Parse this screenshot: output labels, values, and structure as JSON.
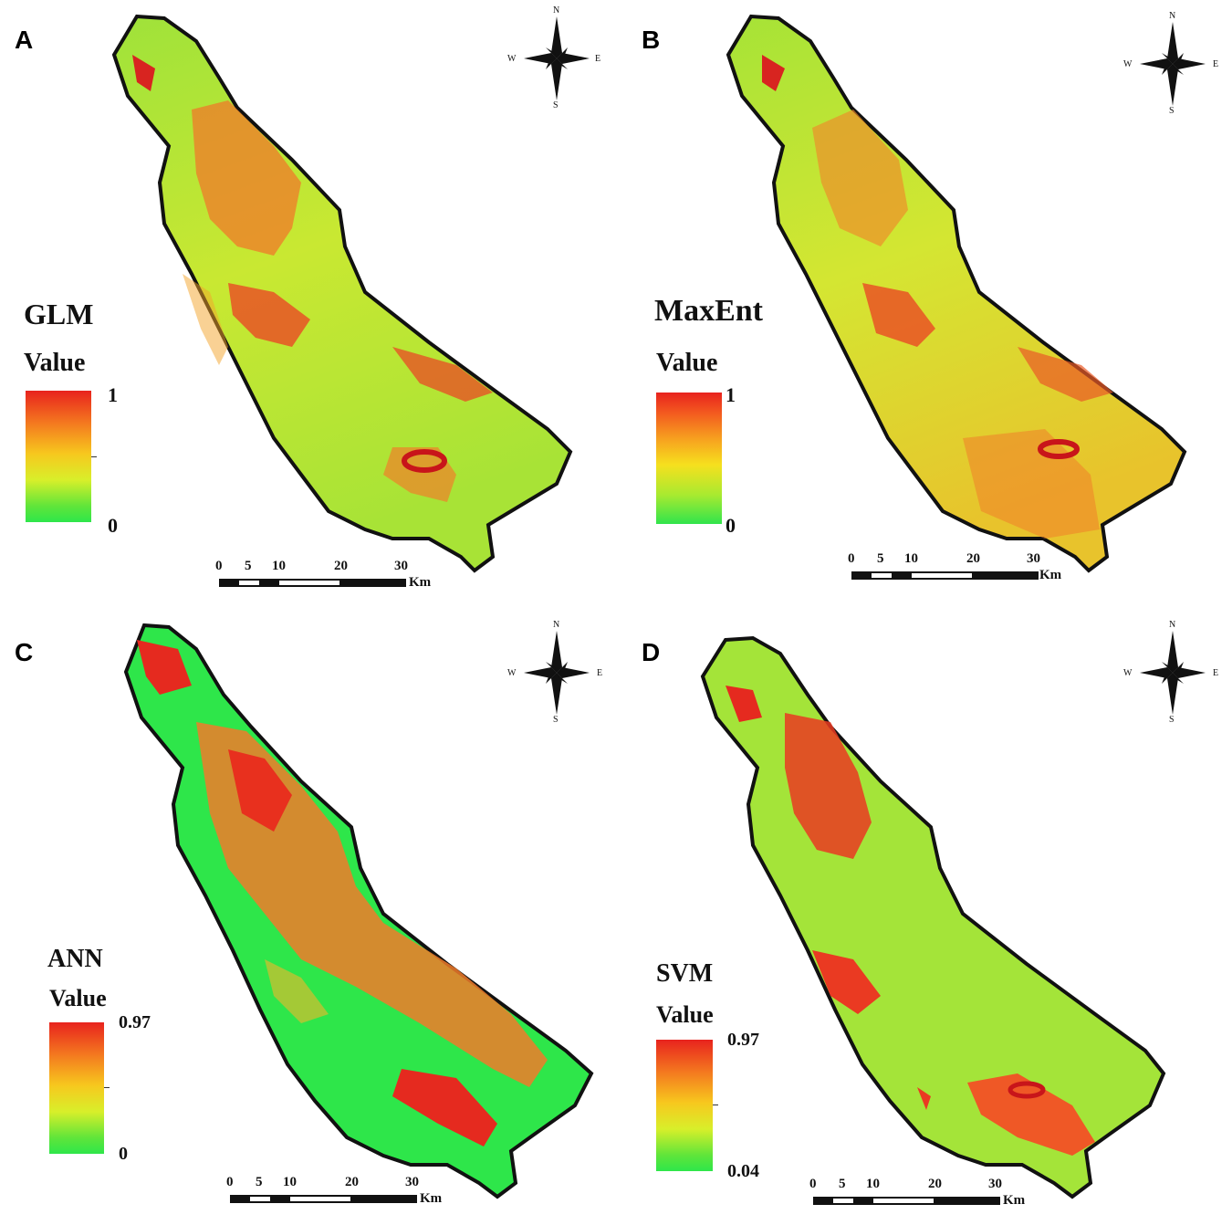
{
  "panels": [
    {
      "letter": "A",
      "model": "GLM",
      "value_label": "Value",
      "max": "1",
      "min": "0"
    },
    {
      "letter": "B",
      "model": "MaxEnt",
      "value_label": "Value",
      "max": "1",
      "min": "0"
    },
    {
      "letter": "C",
      "model": "ANN",
      "value_label": "Value",
      "max": "0.97",
      "min": "0"
    },
    {
      "letter": "D",
      "model": "SVM",
      "value_label": "Value",
      "max": "0.97",
      "min": "0.04"
    }
  ],
  "scalebar": {
    "ticks": [
      "0",
      "5",
      "10",
      "20",
      "30"
    ],
    "unit": "Km"
  },
  "compass": {
    "n": "N",
    "s": "S",
    "e": "E",
    "w": "W"
  },
  "colors": {
    "high": "#e8231e",
    "mid": "#f7c81e",
    "low": "#2ee64a",
    "outline": "#111111"
  }
}
